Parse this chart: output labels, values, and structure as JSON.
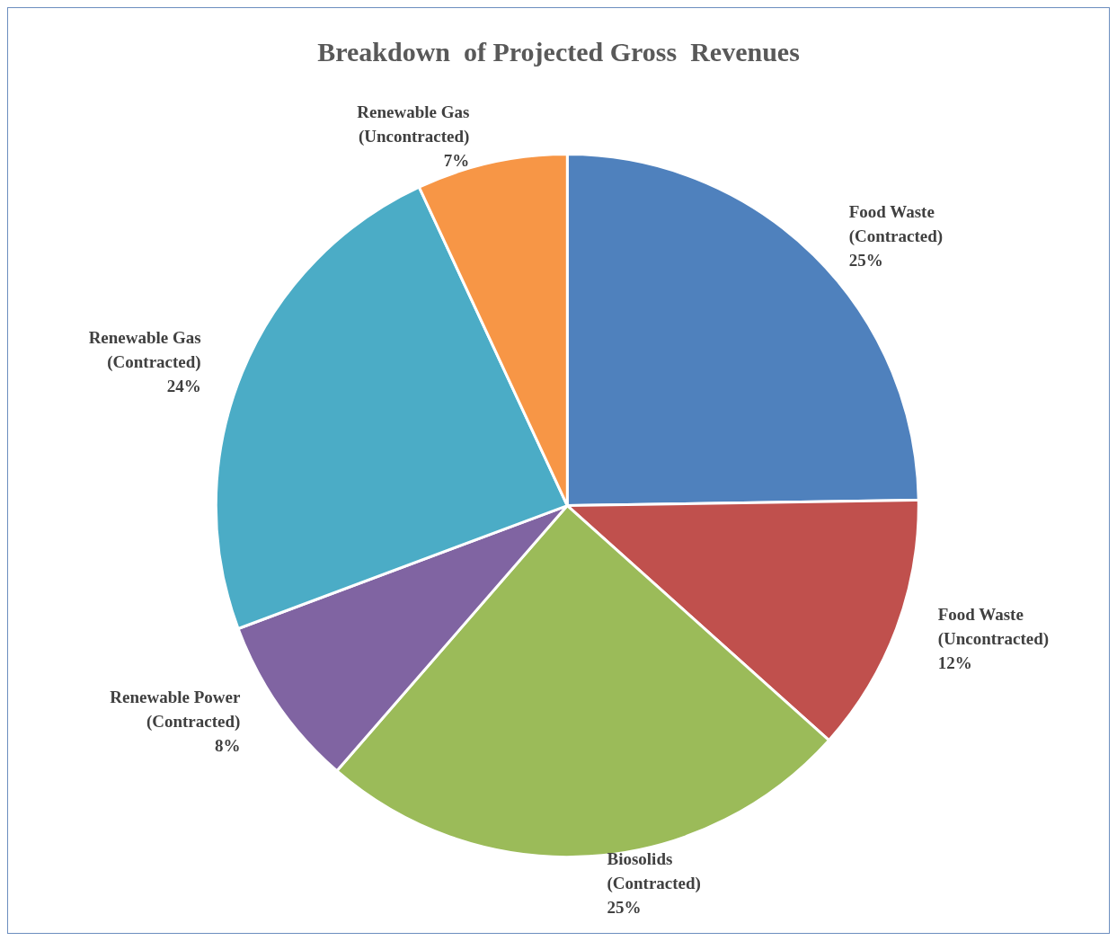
{
  "chart_data": {
    "type": "pie",
    "title": "Breakdown  of Projected Gross  Revenues",
    "categories": [
      "Food Waste\n(Contracted)",
      "Food Waste\n(Uncontracted)",
      "Biosolids\n(Contracted)",
      "Renewable Power\n(Contracted)",
      "Renewable Gas\n(Contracted)",
      "Renewable Gas\n(Uncontracted)"
    ],
    "values": [
      25,
      12,
      25,
      8,
      24,
      7
    ],
    "colors": [
      "#4f81bd",
      "#c0504d",
      "#9bbb59",
      "#8064a2",
      "#4bacc6",
      "#f79646"
    ],
    "value_labels": [
      "25%",
      "12%",
      "25%",
      "8%",
      "24%",
      "7%"
    ],
    "legend": false
  }
}
